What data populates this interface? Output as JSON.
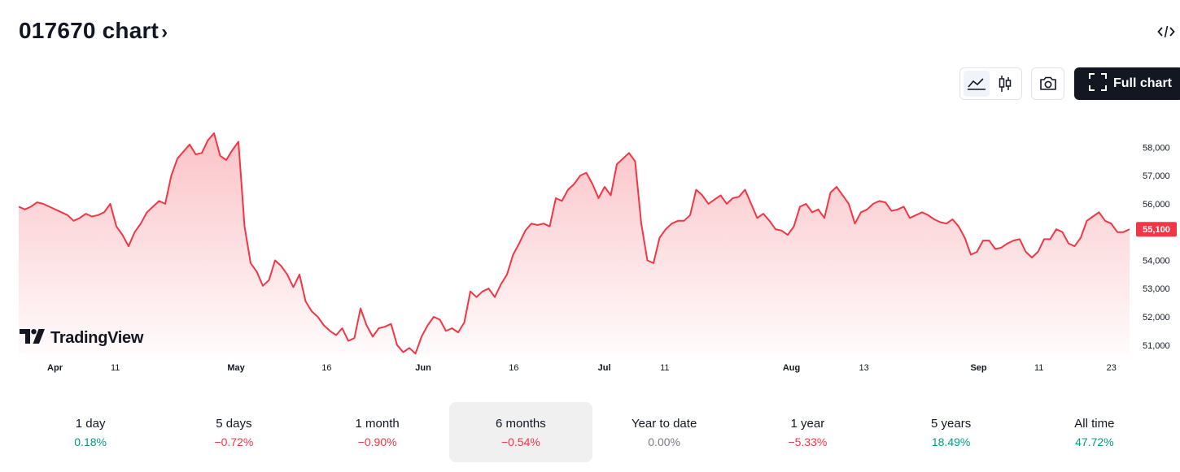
{
  "header": {
    "title": "017670 chart",
    "chevron": "›",
    "embed_icon": "code-icon"
  },
  "toolbar": {
    "line_icon": "area-chart-icon",
    "candle_icon": "candlestick-icon",
    "camera_icon": "camera-icon",
    "full_chart_label": "Full chart",
    "full_chart_icon": "fullscreen-icon"
  },
  "logo": {
    "text": "TradingView"
  },
  "colors": {
    "line": "#f23645",
    "fill_top": "#f23645",
    "positive": "#089981",
    "negative": "#f23645",
    "neutral": "#787b86"
  },
  "chart_data": {
    "type": "area",
    "symbol": "017670",
    "x_start": "2024-03-26",
    "x_end": "2024-09-26",
    "x_ticks": [
      "Apr",
      "11",
      "May",
      "16",
      "Jun",
      "16",
      "Jul",
      "11",
      "Aug",
      "13",
      "Sep",
      "11",
      "23"
    ],
    "y_ticks": [
      "58,000",
      "57,000",
      "56,000",
      "55,000",
      "54,000",
      "53,000",
      "52,000",
      "51,000"
    ],
    "ylim": [
      50650,
      58900
    ],
    "last_price": 55100,
    "last_price_label": "55,100",
    "grid": false,
    "series": [
      {
        "values": [
          55900,
          55800,
          55900,
          56050,
          56000,
          55900,
          55800,
          55700,
          55600,
          55400,
          55500,
          55650,
          55550,
          55600,
          55700,
          56000,
          55200,
          54900,
          54500,
          55000,
          55300,
          55700,
          55900,
          56100,
          56000,
          57000,
          57600,
          57850,
          58100,
          57750,
          57800,
          58250,
          58500,
          57700,
          57550,
          57900,
          58200,
          55200,
          53900,
          53600,
          53100,
          53300,
          54000,
          53800,
          53500,
          53050,
          53500,
          52550,
          52200,
          52000,
          51700,
          51500,
          51350,
          51600,
          51150,
          51250,
          52300,
          51700,
          51300,
          51600,
          51650,
          51750,
          51000,
          50750,
          50900,
          50700,
          51300,
          51700,
          52000,
          51900,
          51500,
          51600,
          51450,
          51800,
          52900,
          52700,
          52900,
          53000,
          52700,
          53150,
          53500,
          54200,
          54600,
          55050,
          55300,
          55250,
          55300,
          55200,
          56200,
          56100,
          56500,
          56700,
          57000,
          57100,
          56700,
          56200,
          56600,
          56300,
          57400,
          57600,
          57800,
          57500,
          55300,
          54000,
          53900,
          54800,
          55100,
          55300,
          55400,
          55400,
          55600,
          56500,
          56300,
          56000,
          56150,
          56300,
          56000,
          56200,
          56250,
          56500,
          56000,
          55500,
          55650,
          55400,
          55100,
          55050,
          54900,
          55200,
          55900,
          56000,
          55700,
          55800,
          55500,
          56400,
          56600,
          56300,
          56000,
          55300,
          55700,
          55800,
          56000,
          56100,
          56050,
          55750,
          55800,
          55900,
          55500,
          55600,
          55700,
          55600,
          55450,
          55350,
          55300,
          55450,
          55200,
          54800,
          54200,
          54300,
          54700,
          54700,
          54400,
          54450,
          54600,
          54700,
          54750,
          54300,
          54100,
          54300,
          54750,
          54750,
          55100,
          55000,
          54600,
          54500,
          54800,
          55400,
          55550,
          55700,
          55400,
          55300,
          55000,
          55000,
          55100
        ]
      }
    ]
  },
  "periods": [
    {
      "label": "1 day",
      "value": "0.18%",
      "tone": "pos",
      "active": false
    },
    {
      "label": "5 days",
      "value": "−0.72%",
      "tone": "neg",
      "active": false
    },
    {
      "label": "1 month",
      "value": "−0.90%",
      "tone": "neg",
      "active": false
    },
    {
      "label": "6 months",
      "value": "−0.54%",
      "tone": "neg",
      "active": true
    },
    {
      "label": "Year to date",
      "value": "0.00%",
      "tone": "neu",
      "active": false
    },
    {
      "label": "1 year",
      "value": "−5.33%",
      "tone": "neg",
      "active": false
    },
    {
      "label": "5 years",
      "value": "18.49%",
      "tone": "pos",
      "active": false
    },
    {
      "label": "All time",
      "value": "47.72%",
      "tone": "pos",
      "active": false
    }
  ]
}
